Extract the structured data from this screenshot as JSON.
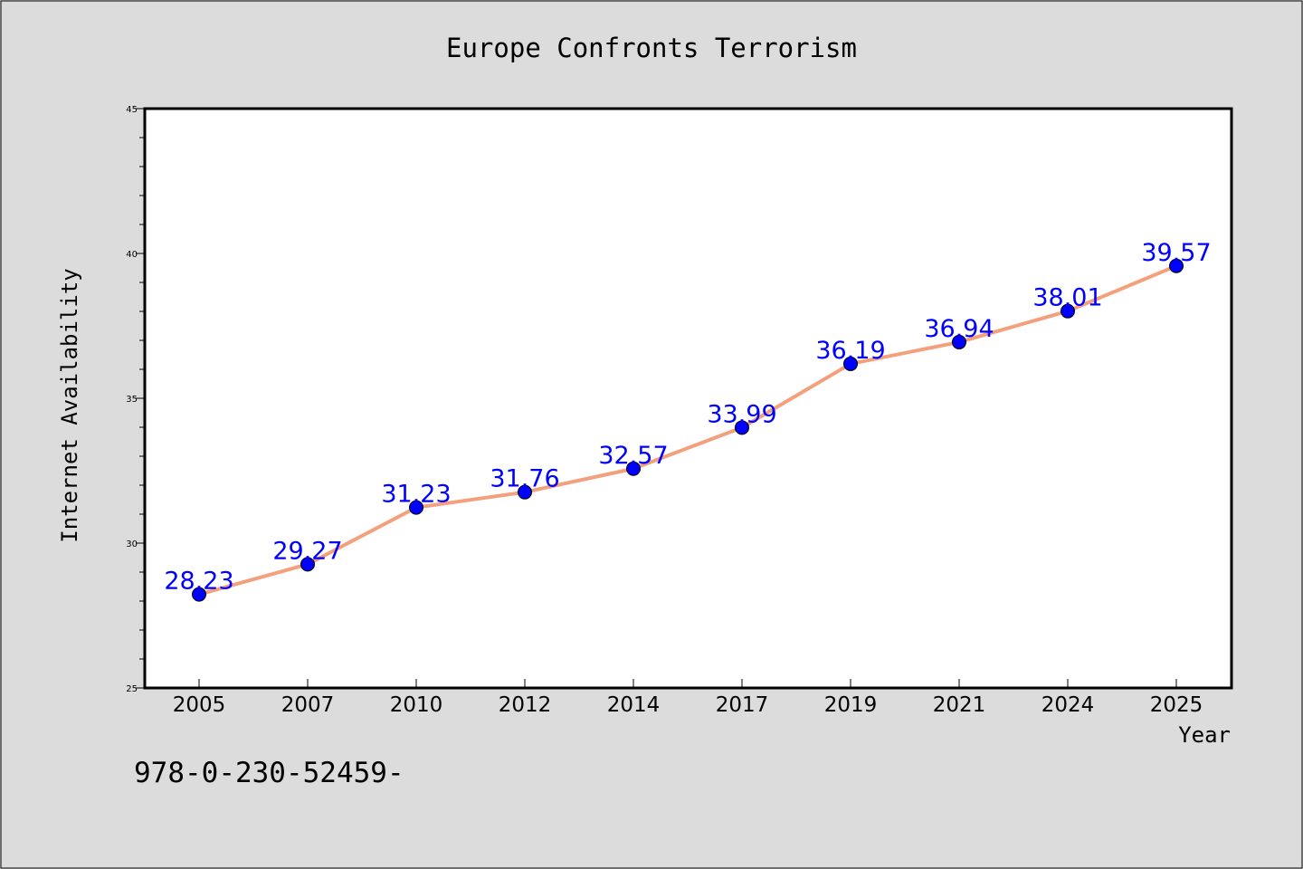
{
  "chart_data": {
    "type": "line",
    "title": "Europe Confronts Terrorism",
    "xlabel": "Year",
    "ylabel": "Internet Availability",
    "categories": [
      "2005",
      "2007",
      "2010",
      "2012",
      "2014",
      "2017",
      "2019",
      "2021",
      "2024",
      "2025"
    ],
    "values": [
      28.23,
      29.27,
      31.23,
      31.76,
      32.57,
      33.99,
      36.19,
      36.94,
      38.01,
      39.57
    ],
    "data_labels": [
      "28.23",
      "29.27",
      "31.23",
      "31.76",
      "32.57",
      "33.99",
      "36.19",
      "36.94",
      "38.01",
      "39.57"
    ],
    "ylim": [
      25,
      45
    ],
    "yticks": [
      "25",
      "30",
      "35",
      "40",
      "45"
    ],
    "grid": false,
    "legend": "none",
    "line_color": "#f4a07c",
    "marker_color": "#0000ff",
    "label_color": "#0000ff"
  },
  "footer": {
    "isbn_text": "978-0-230-52459-"
  }
}
